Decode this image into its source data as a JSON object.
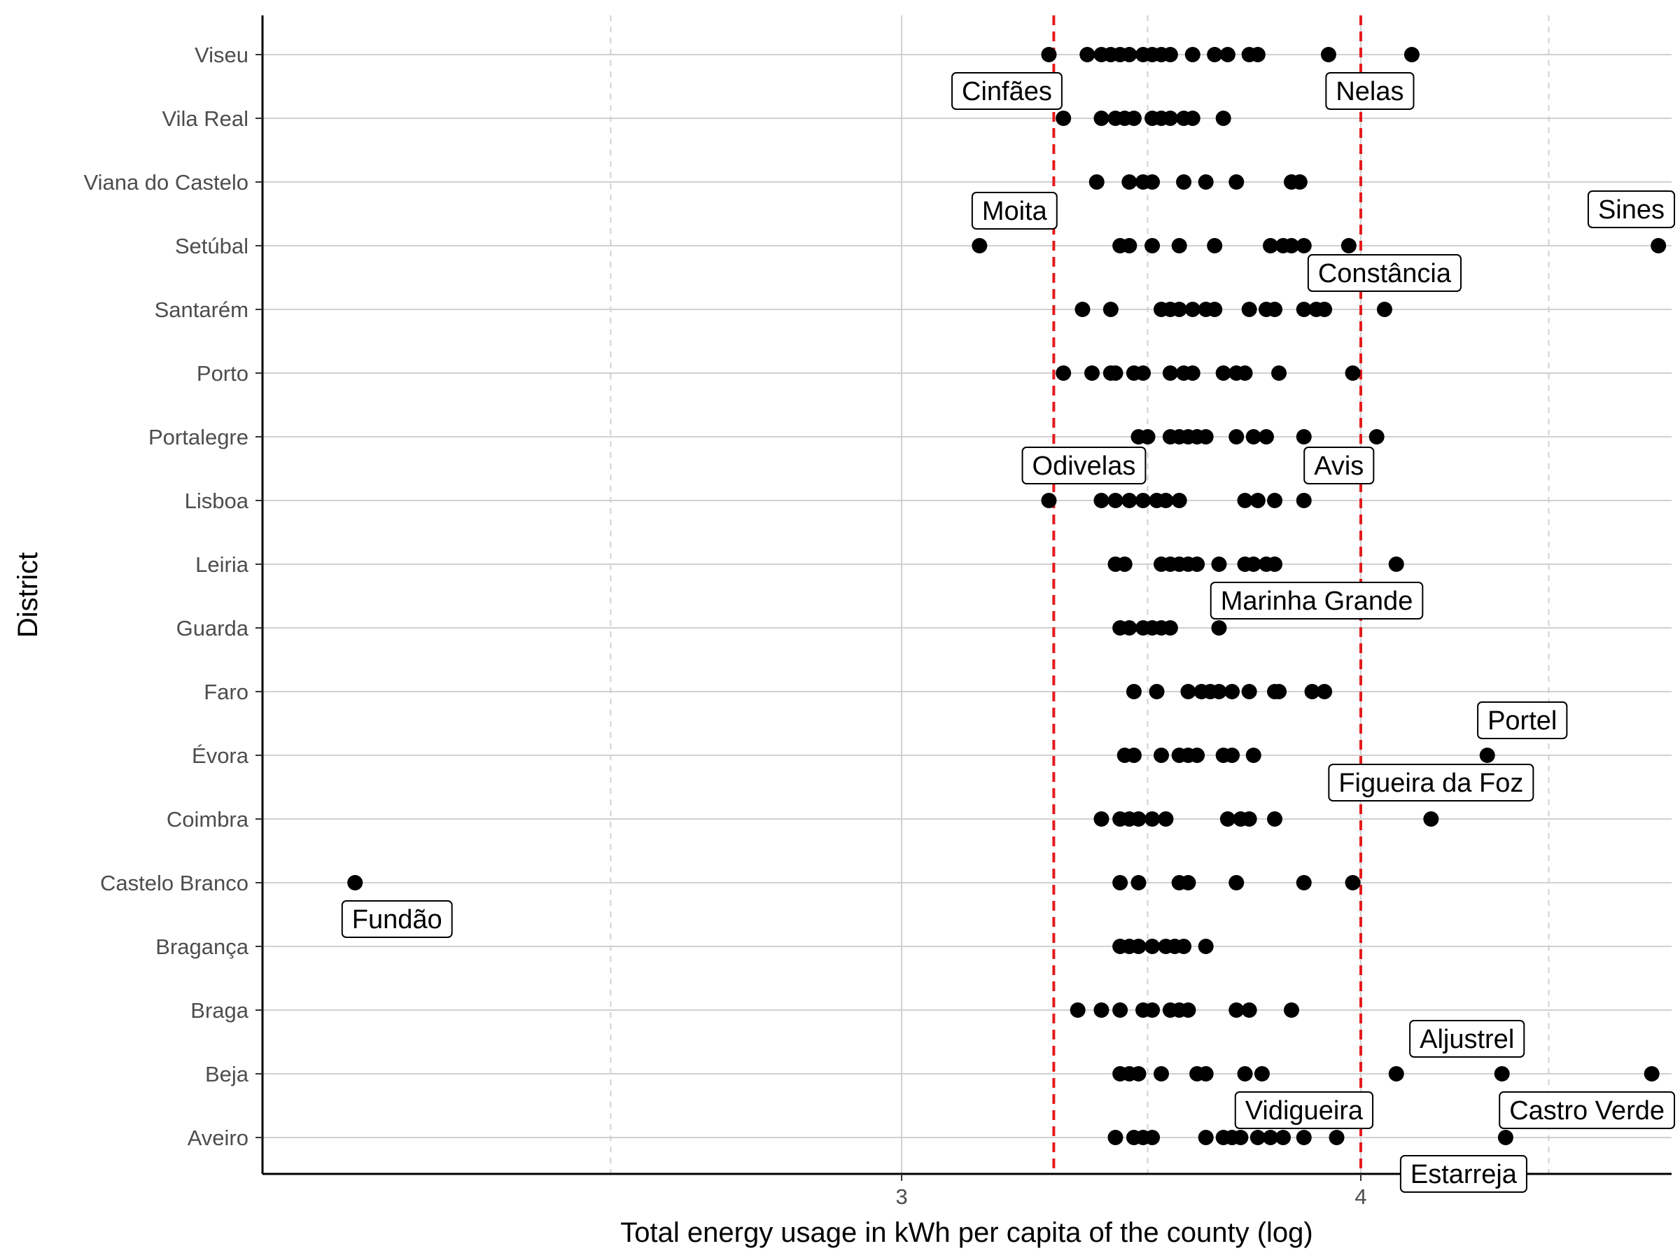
{
  "chart_data": {
    "type": "scatter",
    "xlabel": "Total energy usage in kWh per capita of the county (log)",
    "ylabel": "District",
    "x_scale": "log",
    "x_ticks": [
      {
        "value": 3,
        "label": "3"
      },
      {
        "value": 4,
        "label": "4"
      }
    ],
    "xlim": [
      2.01,
      4.86
    ],
    "x_minor_grid": [
      2.5,
      3.5,
      4.5
    ],
    "grid": {
      "major_x": "solid",
      "minor_x": "dashed",
      "major_y": "solid"
    },
    "reference_lines": [
      3.3,
      4.0
    ],
    "reference_line_color": "#e41a1c",
    "point_color": "#000000",
    "legend": "none",
    "categories": [
      "Aveiro",
      "Beja",
      "Braga",
      "Bragança",
      "Castelo Branco",
      "Coimbra",
      "Évora",
      "Faro",
      "Guarda",
      "Leiria",
      "Lisboa",
      "Portalegre",
      "Porto",
      "Santarém",
      "Setúbal",
      "Viana do Castelo",
      "Vila Real",
      "Viseu"
    ],
    "series": [
      {
        "category": "Aveiro",
        "x": [
          3.43,
          3.47,
          3.49,
          3.51,
          3.63,
          3.67,
          3.69,
          3.71,
          3.75,
          3.78,
          3.81,
          3.86,
          3.94,
          4.38
        ]
      },
      {
        "category": "Beja",
        "x": [
          3.44,
          3.46,
          3.48,
          3.53,
          3.61,
          3.63,
          3.72,
          3.76,
          4.09,
          4.37,
          4.8
        ]
      },
      {
        "category": "Braga",
        "x": [
          3.35,
          3.4,
          3.44,
          3.49,
          3.51,
          3.55,
          3.57,
          3.59,
          3.7,
          3.73,
          3.83
        ]
      },
      {
        "category": "Bragança",
        "x": [
          3.44,
          3.46,
          3.48,
          3.51,
          3.54,
          3.56,
          3.58,
          3.63
        ]
      },
      {
        "category": "Castelo Branco",
        "x": [
          2.13,
          3.44,
          3.48,
          3.57,
          3.59,
          3.7,
          3.86,
          3.98
        ]
      },
      {
        "category": "Coimbra",
        "x": [
          3.4,
          3.44,
          3.46,
          3.48,
          3.51,
          3.54,
          3.68,
          3.71,
          3.73,
          3.79,
          4.18
        ]
      },
      {
        "category": "Évora",
        "x": [
          3.45,
          3.47,
          3.53,
          3.57,
          3.59,
          3.61,
          3.67,
          3.69,
          3.74,
          4.33
        ]
      },
      {
        "category": "Faro",
        "x": [
          3.47,
          3.52,
          3.59,
          3.62,
          3.64,
          3.66,
          3.69,
          3.73,
          3.79,
          3.8,
          3.88,
          3.91
        ]
      },
      {
        "category": "Guarda",
        "x": [
          3.44,
          3.46,
          3.49,
          3.51,
          3.53,
          3.55,
          3.66
        ]
      },
      {
        "category": "Leiria",
        "x": [
          3.43,
          3.45,
          3.53,
          3.55,
          3.57,
          3.59,
          3.61,
          3.66,
          3.72,
          3.74,
          3.77,
          3.79,
          4.09
        ]
      },
      {
        "category": "Lisboa",
        "x": [
          3.29,
          3.4,
          3.43,
          3.46,
          3.49,
          3.52,
          3.54,
          3.57,
          3.72,
          3.75,
          3.79,
          3.86
        ]
      },
      {
        "category": "Portalegre",
        "x": [
          3.48,
          3.5,
          3.55,
          3.57,
          3.59,
          3.61,
          3.63,
          3.7,
          3.74,
          3.77,
          3.86,
          4.04
        ]
      },
      {
        "category": "Porto",
        "x": [
          3.32,
          3.38,
          3.42,
          3.43,
          3.47,
          3.49,
          3.55,
          3.58,
          3.6,
          3.67,
          3.7,
          3.72,
          3.8,
          3.98
        ]
      },
      {
        "category": "Santarém",
        "x": [
          3.36,
          3.42,
          3.53,
          3.55,
          3.57,
          3.6,
          3.63,
          3.65,
          3.73,
          3.77,
          3.79,
          3.86,
          3.89,
          3.91,
          4.06
        ]
      },
      {
        "category": "Setúbal",
        "x": [
          3.15,
          3.44,
          3.46,
          3.51,
          3.57,
          3.65,
          3.78,
          3.81,
          3.83,
          3.86,
          3.97,
          4.82
        ]
      },
      {
        "category": "Viana do Castelo",
        "x": [
          3.39,
          3.46,
          3.49,
          3.51,
          3.58,
          3.63,
          3.7,
          3.83,
          3.85
        ]
      },
      {
        "category": "Vila Real",
        "x": [
          3.32,
          3.4,
          3.43,
          3.45,
          3.47,
          3.51,
          3.53,
          3.55,
          3.58,
          3.6,
          3.67
        ]
      },
      {
        "category": "Viseu",
        "x": [
          3.29,
          3.37,
          3.4,
          3.42,
          3.44,
          3.46,
          3.49,
          3.51,
          3.53,
          3.55,
          3.6,
          3.65,
          3.68,
          3.73,
          3.75,
          3.92,
          4.13
        ]
      }
    ],
    "annotations": [
      {
        "text": "Cinfães",
        "category": "Viseu",
        "x": 3.29,
        "placement": "below-left"
      },
      {
        "text": "Nelas",
        "category": "Viseu",
        "x": 4.13,
        "placement": "below-left"
      },
      {
        "text": "Moita",
        "category": "Setúbal",
        "x": 3.15,
        "placement": "above-right"
      },
      {
        "text": "Sines",
        "category": "Setúbal",
        "x": 4.82,
        "placement": "above"
      },
      {
        "text": "Constância",
        "category": "Santarém",
        "x": 4.06,
        "placement": "above"
      },
      {
        "text": "Odivelas",
        "category": "Lisboa",
        "x": 3.29,
        "placement": "above-right"
      },
      {
        "text": "Avis",
        "category": "Lisboa",
        "x": 3.86,
        "placement": "above-right"
      },
      {
        "text": "Marinha Grande",
        "category": "Leiria",
        "x": 3.79,
        "placement": "below-right"
      },
      {
        "text": "Portel",
        "category": "Évora",
        "x": 4.33,
        "placement": "above-right"
      },
      {
        "text": "Figueira da Foz",
        "category": "Coimbra",
        "x": 4.18,
        "placement": "above"
      },
      {
        "text": "Fundão",
        "category": "Castelo Branco",
        "x": 2.13,
        "placement": "below-right"
      },
      {
        "text": "Aljustrel",
        "category": "Beja",
        "x": 4.37,
        "placement": "above-left"
      },
      {
        "text": "Vidigueira",
        "category": "Beja",
        "x": 3.76,
        "placement": "below-right"
      },
      {
        "text": "Castro Verde",
        "category": "Beja",
        "x": 4.8,
        "placement": "below-left"
      },
      {
        "text": "Estarreja",
        "category": "Aveiro",
        "x": 4.38,
        "placement": "below-left"
      }
    ]
  }
}
